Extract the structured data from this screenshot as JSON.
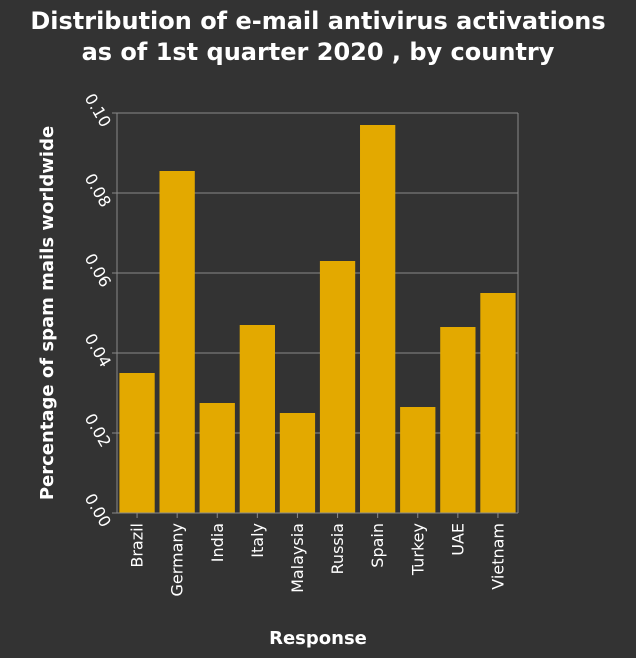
{
  "chart_data": {
    "type": "bar",
    "title_lines": [
      "Distribution of e-mail antivirus activations",
      "as of 1st quarter 2020 , by country"
    ],
    "xlabel": "Response",
    "ylabel": "Percentage of spam mails worldwide",
    "categories": [
      "Brazil",
      "Germany",
      "India",
      "Italy",
      "Malaysia",
      "Russia",
      "Spain",
      "Turkey",
      "UAE",
      "Vietnam"
    ],
    "values": [
      0.035,
      0.0855,
      0.0275,
      0.047,
      0.025,
      0.063,
      0.097,
      0.0265,
      0.0465,
      0.055
    ],
    "ylim": [
      0,
      0.1
    ],
    "yticks": [
      "0.00",
      "0.02",
      "0.04",
      "0.06",
      "0.08",
      "0.10"
    ],
    "grid": true,
    "colors": {
      "bar": "#e3a900",
      "background": "#333333",
      "grid": "#8a8a8a",
      "text": "#ffffff"
    }
  }
}
